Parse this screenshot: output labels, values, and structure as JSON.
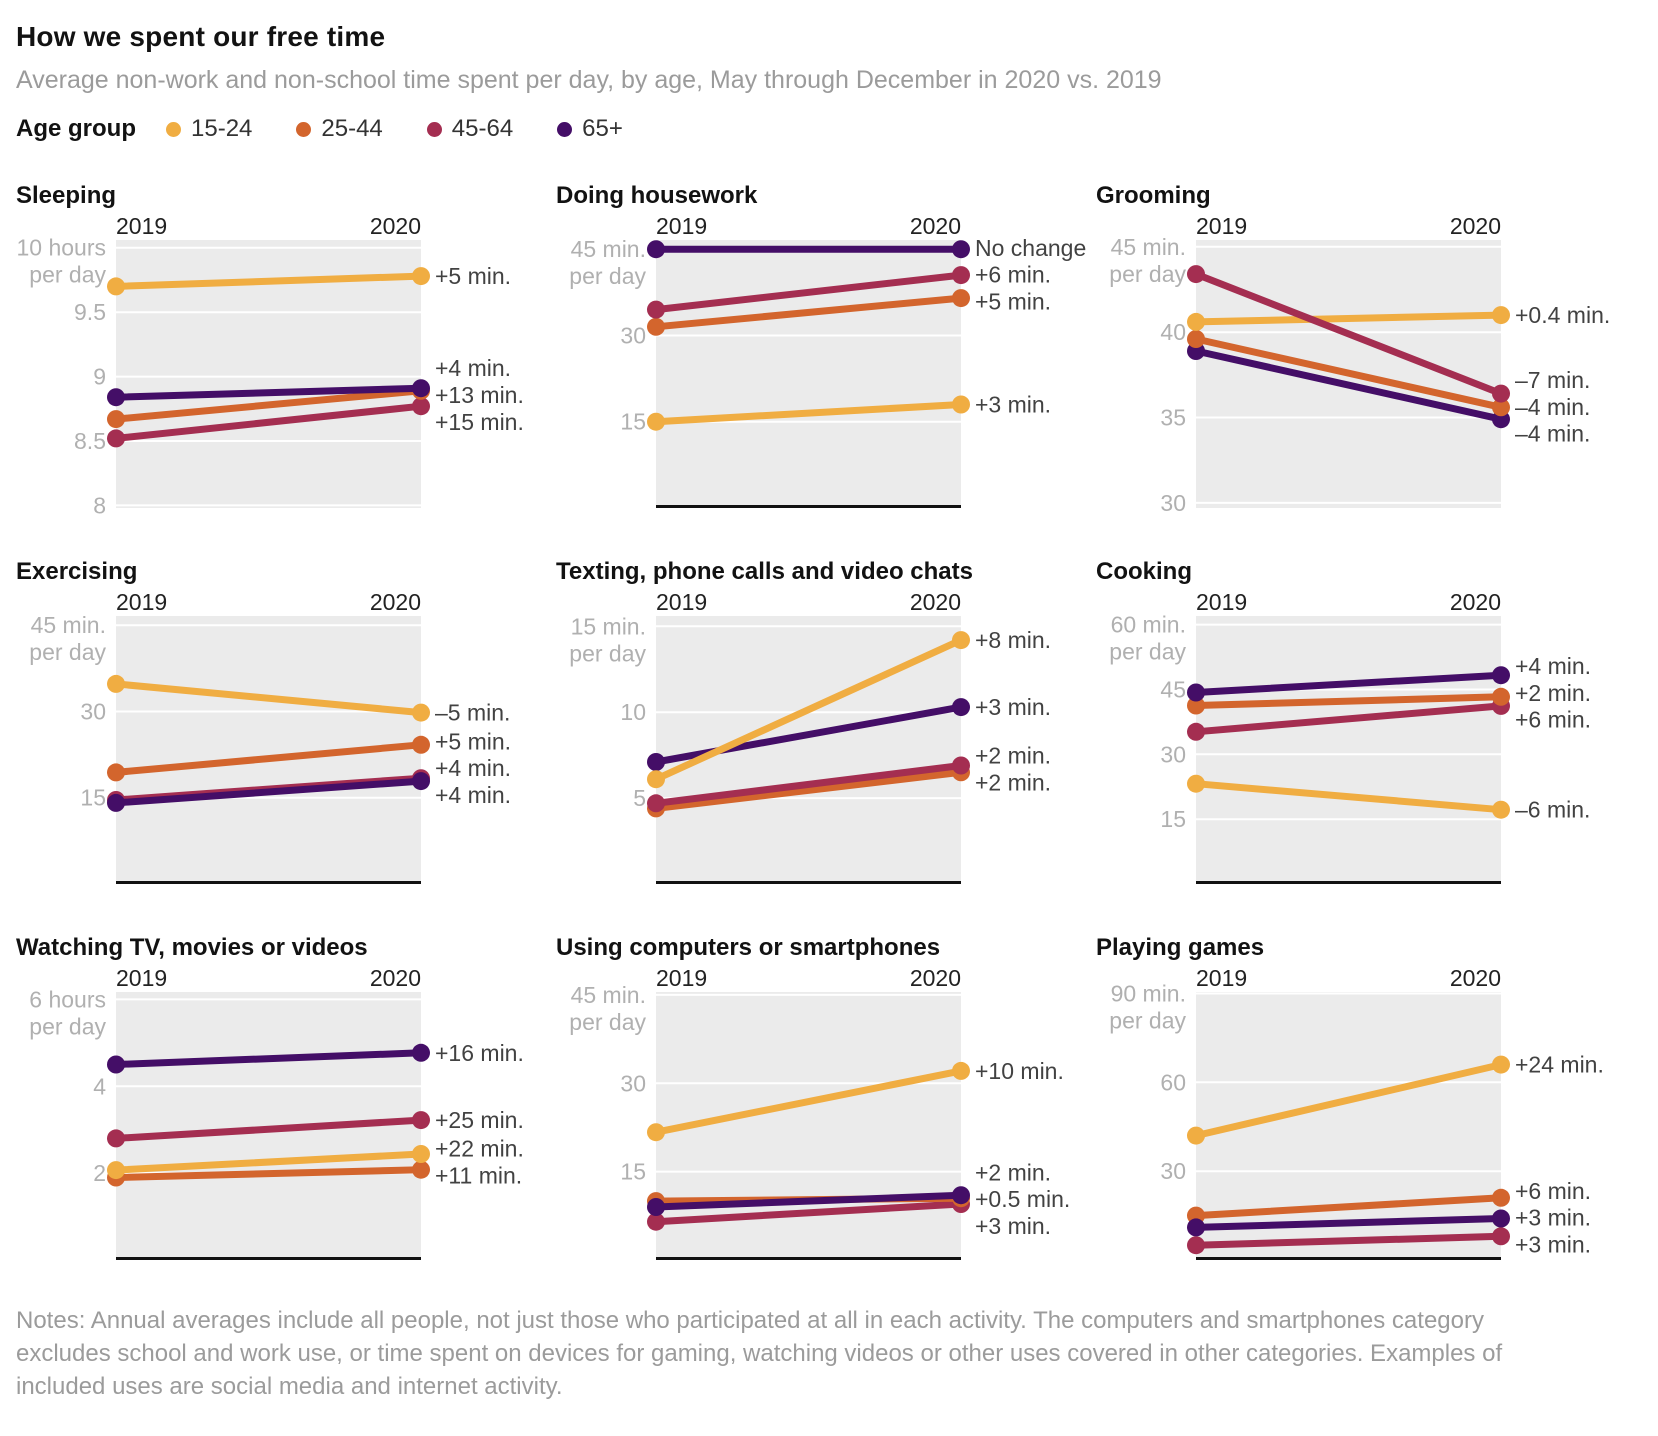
{
  "header": {
    "title": "How we spent our free time",
    "subtitle": "Average non-work and non-school time spent per day, by age, May through December in 2020 vs. 2019"
  },
  "legend": {
    "label": "Age group",
    "items": [
      {
        "id": "15-24",
        "label": "15-24",
        "color": "#F0AD42"
      },
      {
        "id": "25-44",
        "label": "25-44",
        "color": "#D3652D"
      },
      {
        "id": "45-64",
        "label": "45-64",
        "color": "#A42E51"
      },
      {
        "id": "65+",
        "label": "65+",
        "color": "#440E67"
      }
    ]
  },
  "colors": {
    "plot_bg": "#EBEBEB",
    "gridline": "#FFFFFF",
    "tick_label": "#B0B0B0",
    "annotation": "#424242",
    "zero_axis": "#111111"
  },
  "chart_data": [
    {
      "type": "line",
      "title": "Sleeping",
      "x_labels": [
        "2019",
        "2020"
      ],
      "ymax": 10.06,
      "ymin": 7.98,
      "zero_axis": false,
      "ticks": [
        {
          "value": 10,
          "label": "10 hours",
          "sub": "per day"
        },
        {
          "value": 9.5,
          "label": "9.5"
        },
        {
          "value": 9,
          "label": "9"
        },
        {
          "value": 8.5,
          "label": "8.5"
        },
        {
          "value": 8,
          "label": "8"
        }
      ],
      "series": [
        {
          "group": "15-24",
          "values": [
            9.7,
            9.78
          ],
          "annotation": "+5 min."
        },
        {
          "group": "25-44",
          "values": [
            8.67,
            8.89
          ],
          "annotation": "+13 min."
        },
        {
          "group": "45-64",
          "values": [
            8.52,
            8.77
          ],
          "annotation": "+15 min."
        },
        {
          "group": "65+",
          "values": [
            8.84,
            8.91
          ],
          "annotation": "+4 min."
        }
      ],
      "draw_order": [
        "45-64",
        "25-44",
        "65+",
        "15-24"
      ]
    },
    {
      "type": "line",
      "title": "Doing housework",
      "x_labels": [
        "2019",
        "2020"
      ],
      "ymax": 46.6,
      "ymin": 0,
      "zero_axis": true,
      "ticks": [
        {
          "value": 45,
          "label": "45 min.",
          "sub": "per day"
        },
        {
          "value": 30,
          "label": "30"
        },
        {
          "value": 15,
          "label": "15"
        }
      ],
      "series": [
        {
          "group": "15-24",
          "values": [
            15,
            18
          ],
          "annotation": "+3 min."
        },
        {
          "group": "25-44",
          "values": [
            31.5,
            36.5
          ],
          "annotation": "+5 min."
        },
        {
          "group": "45-64",
          "values": [
            34.5,
            40.5
          ],
          "annotation": "+6 min."
        },
        {
          "group": "65+",
          "values": [
            45,
            45
          ],
          "annotation": "No change"
        }
      ],
      "draw_order": [
        "25-44",
        "45-64",
        "65+",
        "15-24"
      ]
    },
    {
      "type": "line",
      "title": "Grooming",
      "x_labels": [
        "2019",
        "2020"
      ],
      "ymax": 45.4,
      "ymin": 29.7,
      "zero_axis": false,
      "ticks": [
        {
          "value": 45,
          "label": "45 min.",
          "sub": "per day"
        },
        {
          "value": 40,
          "label": "40"
        },
        {
          "value": 35,
          "label": "35"
        },
        {
          "value": 30,
          "label": "30"
        }
      ],
      "series": [
        {
          "group": "15-24",
          "values": [
            40.6,
            41.0
          ],
          "annotation": "+0.4 min."
        },
        {
          "group": "25-44",
          "values": [
            39.6,
            35.6
          ],
          "annotation": "–4 min."
        },
        {
          "group": "45-64",
          "values": [
            43.4,
            36.4
          ],
          "annotation": "–7 min."
        },
        {
          "group": "65+",
          "values": [
            38.9,
            34.9
          ],
          "annotation": "–4 min."
        }
      ],
      "draw_order": [
        "65+",
        "25-44",
        "15-24",
        "45-64"
      ]
    },
    {
      "type": "line",
      "title": "Exercising",
      "x_labels": [
        "2019",
        "2020"
      ],
      "ymax": 46.6,
      "ymin": 0,
      "zero_axis": true,
      "ticks": [
        {
          "value": 45,
          "label": "45 min.",
          "sub": "per day"
        },
        {
          "value": 30,
          "label": "30"
        },
        {
          "value": 15,
          "label": "15"
        }
      ],
      "series": [
        {
          "group": "15-24",
          "values": [
            34.8,
            29.8
          ],
          "annotation": "–5 min."
        },
        {
          "group": "25-44",
          "values": [
            19.4,
            24.2
          ],
          "annotation": "+5 min."
        },
        {
          "group": "45-64",
          "values": [
            14.6,
            18.4
          ],
          "annotation": "+4 min."
        },
        {
          "group": "65+",
          "values": [
            14.1,
            17.9
          ],
          "annotation": "+4 min."
        }
      ],
      "draw_order": [
        "25-44",
        "45-64",
        "65+",
        "15-24"
      ]
    },
    {
      "type": "line",
      "title": "Texting, phone calls and video chats",
      "x_labels": [
        "2019",
        "2020"
      ],
      "ymax": 15.6,
      "ymin": 0,
      "zero_axis": true,
      "ticks": [
        {
          "value": 15,
          "label": "15 min.",
          "sub": "per day"
        },
        {
          "value": 10,
          "label": "10"
        },
        {
          "value": 5,
          "label": "5"
        }
      ],
      "series": [
        {
          "group": "15-24",
          "values": [
            6.1,
            14.2
          ],
          "annotation": "+8 min."
        },
        {
          "group": "25-44",
          "values": [
            4.4,
            6.5
          ],
          "annotation": "+2 min."
        },
        {
          "group": "45-64",
          "values": [
            4.7,
            6.9
          ],
          "annotation": "+2 min."
        },
        {
          "group": "65+",
          "values": [
            7.1,
            10.3
          ],
          "annotation": "+3 min."
        }
      ],
      "draw_order": [
        "25-44",
        "45-64",
        "65+",
        "15-24"
      ]
    },
    {
      "type": "line",
      "title": "Cooking",
      "x_labels": [
        "2019",
        "2020"
      ],
      "ymax": 62,
      "ymin": 0,
      "zero_axis": true,
      "ticks": [
        {
          "value": 60,
          "label": "60 min.",
          "sub": "per day"
        },
        {
          "value": 45,
          "label": "45"
        },
        {
          "value": 30,
          "label": "30"
        },
        {
          "value": 15,
          "label": "15"
        }
      ],
      "series": [
        {
          "group": "15-24",
          "values": [
            23.2,
            17.2
          ],
          "annotation": "–6 min."
        },
        {
          "group": "25-44",
          "values": [
            41.3,
            43.3
          ],
          "annotation": "+2 min."
        },
        {
          "group": "45-64",
          "values": [
            35.2,
            41.2
          ],
          "annotation": "+6 min."
        },
        {
          "group": "65+",
          "values": [
            44.3,
            48.3
          ],
          "annotation": "+4 min."
        }
      ],
      "draw_order": [
        "45-64",
        "25-44",
        "65+",
        "15-24"
      ]
    },
    {
      "type": "line",
      "title": "Watching TV, movies or videos",
      "x_labels": [
        "2019",
        "2020"
      ],
      "ymax": 6.17,
      "ymin": 0,
      "zero_axis": true,
      "ticks": [
        {
          "value": 6,
          "label": "6 hours",
          "sub": "per day"
        },
        {
          "value": 4,
          "label": "4"
        },
        {
          "value": 2,
          "label": "2"
        }
      ],
      "series": [
        {
          "group": "15-24",
          "values": [
            2.07,
            2.44
          ],
          "annotation": "+22 min."
        },
        {
          "group": "25-44",
          "values": [
            1.9,
            2.08
          ],
          "annotation": "+11 min."
        },
        {
          "group": "45-64",
          "values": [
            2.8,
            3.22
          ],
          "annotation": "+25 min."
        },
        {
          "group": "65+",
          "values": [
            4.5,
            4.77
          ],
          "annotation": "+16 min."
        }
      ],
      "draw_order": [
        "25-44",
        "45-64",
        "65+",
        "15-24"
      ]
    },
    {
      "type": "line",
      "title": "Using computers or smartphones",
      "x_labels": [
        "2019",
        "2020"
      ],
      "ymax": 45.5,
      "ymin": 0,
      "zero_axis": true,
      "ticks": [
        {
          "value": 45,
          "label": "45 min.",
          "sub": "per day"
        },
        {
          "value": 30,
          "label": "30"
        },
        {
          "value": 15,
          "label": "15"
        }
      ],
      "series": [
        {
          "group": "15-24",
          "values": [
            21.7,
            32.1
          ],
          "annotation": "+10 min."
        },
        {
          "group": "25-44",
          "values": [
            10.0,
            10.5
          ],
          "annotation": "+0.5 min."
        },
        {
          "group": "45-64",
          "values": [
            6.5,
            9.5
          ],
          "annotation": "+3 min."
        },
        {
          "group": "65+",
          "values": [
            9.0,
            11.0
          ],
          "annotation": "+2 min."
        }
      ],
      "draw_order": [
        "45-64",
        "25-44",
        "65+",
        "15-24"
      ]
    },
    {
      "type": "line",
      "title": "Playing games",
      "x_labels": [
        "2019",
        "2020"
      ],
      "ymax": 90.5,
      "ymin": 0,
      "zero_axis": true,
      "ticks": [
        {
          "value": 90,
          "label": "90 min.",
          "sub": "per day"
        },
        {
          "value": 60,
          "label": "60"
        },
        {
          "value": 30,
          "label": "30"
        }
      ],
      "series": [
        {
          "group": "15-24",
          "values": [
            42,
            66
          ],
          "annotation": "+24 min."
        },
        {
          "group": "25-44",
          "values": [
            15,
            21
          ],
          "annotation": "+6 min."
        },
        {
          "group": "45-64",
          "values": [
            5,
            8
          ],
          "annotation": "+3 min."
        },
        {
          "group": "65+",
          "values": [
            11,
            14
          ],
          "annotation": "+3 min."
        }
      ],
      "draw_order": [
        "45-64",
        "25-44",
        "65+",
        "15-24"
      ]
    }
  ],
  "notes": "Notes: Annual averages include all people, not just those who participated at all in each activity. The computers and smartphones category excludes school and work use, or time spent on devices for gaming, watching videos or other uses covered in other categories. Examples of included uses are social media and internet activity."
}
